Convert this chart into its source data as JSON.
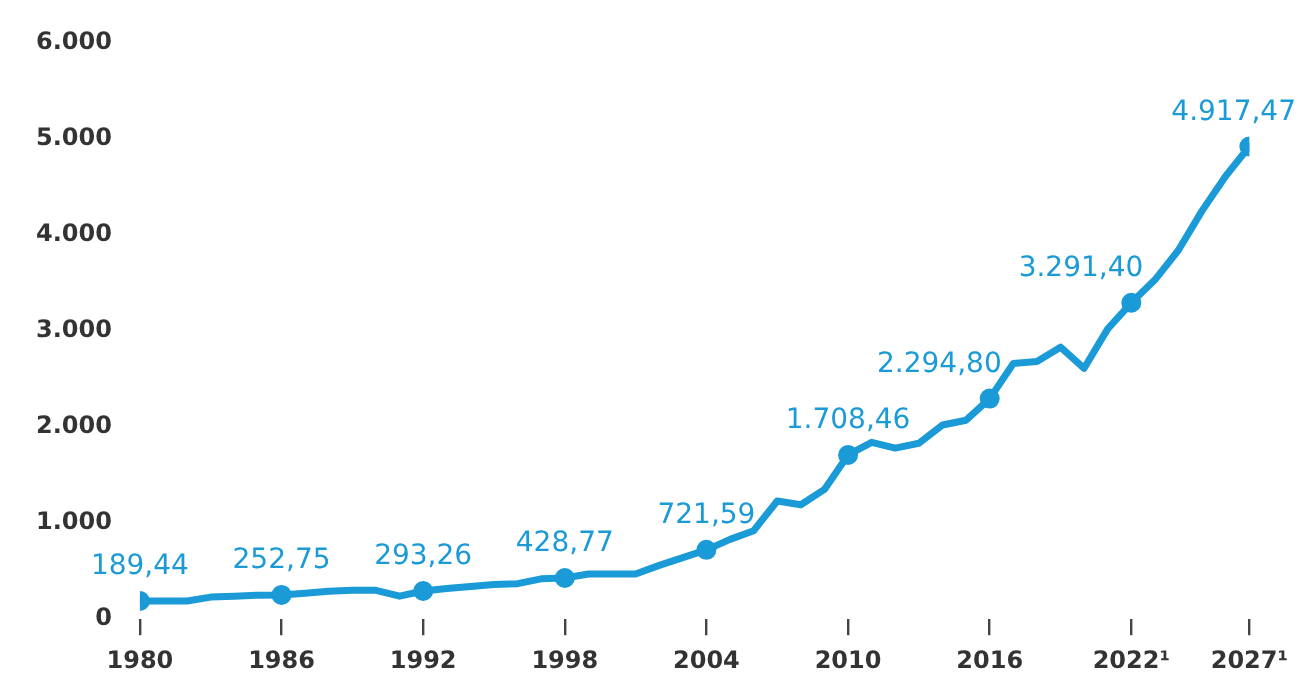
{
  "chart_data": {
    "type": "line",
    "x": [
      1980,
      1981,
      1982,
      1983,
      1984,
      1985,
      1986,
      1987,
      1988,
      1989,
      1990,
      1991,
      1992,
      1993,
      1994,
      1995,
      1996,
      1997,
      1998,
      1999,
      2000,
      2001,
      2002,
      2003,
      2004,
      2005,
      2006,
      2007,
      2008,
      2009,
      2010,
      2011,
      2012,
      2013,
      2014,
      2015,
      2016,
      2017,
      2018,
      2019,
      2020,
      2021,
      2022,
      2023,
      2024,
      2025,
      2026,
      2027
    ],
    "series": [
      {
        "color": "#1a9ad6",
        "values": [
          189.44,
          190,
          190,
          230,
          240,
          250,
          252.75,
          270,
          290,
          300,
          300,
          240,
          293.26,
          320,
          340,
          360,
          370,
          420,
          428.77,
          470,
          470,
          470,
          560,
          640,
          721.59,
          830,
          920,
          1230,
          1190,
          1350,
          1708.46,
          1840,
          1780,
          1830,
          2020,
          2070,
          2294.8,
          2660,
          2680,
          2830,
          2610,
          3020,
          3291.4,
          3530,
          3840,
          4250,
          4610,
          4917.47
        ],
        "value_labels": [
          "189,44",
          null,
          null,
          null,
          null,
          null,
          "252,75",
          null,
          null,
          null,
          null,
          null,
          "293,26",
          null,
          null,
          null,
          null,
          null,
          "428,77",
          null,
          null,
          null,
          null,
          null,
          "721,59",
          null,
          null,
          null,
          null,
          null,
          "1.708,46",
          null,
          null,
          null,
          null,
          null,
          "2.294,80",
          null,
          null,
          null,
          null,
          null,
          "3.291,40",
          null,
          null,
          null,
          null,
          "4.917,47"
        ]
      }
    ],
    "xlim": [
      1980,
      2027
    ],
    "xticks": [
      1980,
      1986,
      1992,
      1998,
      2004,
      2010,
      2016,
      {
        "value": 2022,
        "label": "2022¹"
      },
      {
        "value": 2027,
        "label": "2027¹"
      }
    ],
    "ylim": [
      0,
      6000
    ],
    "yticks": [
      0,
      {
        "value": 1000,
        "label": "1.000"
      },
      {
        "value": 2000,
        "label": "2.000"
      },
      {
        "value": 3000,
        "label": "3.000"
      },
      {
        "value": 4000,
        "label": "4.000"
      },
      {
        "value": 5000,
        "label": "5.000"
      },
      {
        "value": 6000,
        "label": "6.000"
      }
    ],
    "grid": false,
    "legend": false,
    "line_style": "solid"
  }
}
